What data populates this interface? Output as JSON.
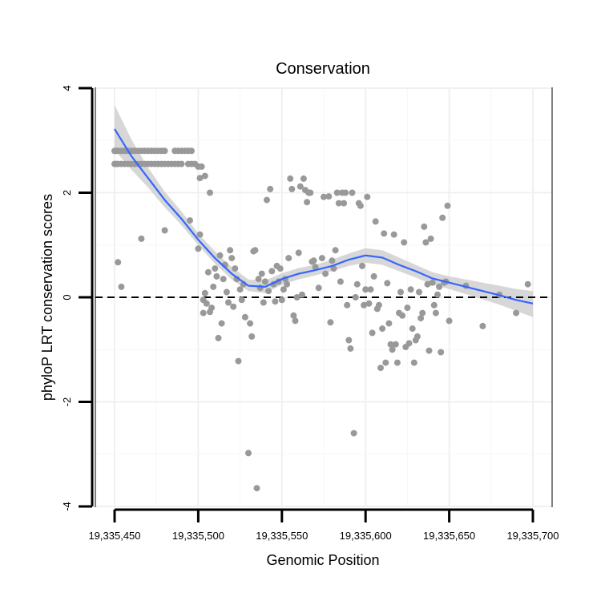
{
  "chart_data": {
    "type": "scatter",
    "title": "Conservation",
    "xlabel": "Genomic Position",
    "ylabel": "phyloP LRT conservation scores",
    "xlim": [
      19335445,
      19335705
    ],
    "ylim": [
      -4,
      4
    ],
    "x_ticks": [
      19335450,
      19335500,
      19335550,
      19335600,
      19335650,
      19335700
    ],
    "x_tick_labels": [
      "19,335,450",
      "19,335,500",
      "19,335,550",
      "19,335,600",
      "19,335,650",
      "19,335,700"
    ],
    "y_ticks": [
      -4,
      -2,
      0,
      2,
      4
    ],
    "y_tick_labels": [
      "-4",
      "-2",
      "0",
      "2",
      "4"
    ],
    "reference_line": {
      "y": 0,
      "style": "dashed"
    },
    "grid": true,
    "colors": {
      "points": "#999999",
      "smooth_line": "#3366ff",
      "confidence_band": "#d0d0d0",
      "reference": "#000000",
      "panel_border": "#808080"
    },
    "points": [
      [
        19335450,
        2.8
      ],
      [
        19335451,
        2.8
      ],
      [
        19335452,
        2.8
      ],
      [
        19335454,
        2.8
      ],
      [
        19335456,
        2.8
      ],
      [
        19335458,
        2.8
      ],
      [
        19335460,
        2.8
      ],
      [
        19335462,
        2.8
      ],
      [
        19335464,
        2.8
      ],
      [
        19335466,
        2.8
      ],
      [
        19335468,
        2.8
      ],
      [
        19335470,
        2.8
      ],
      [
        19335472,
        2.8
      ],
      [
        19335474,
        2.8
      ],
      [
        19335476,
        2.8
      ],
      [
        19335478,
        2.8
      ],
      [
        19335480,
        2.8
      ],
      [
        19335486,
        2.8
      ],
      [
        19335488,
        2.8
      ],
      [
        19335490,
        2.8
      ],
      [
        19335492,
        2.8
      ],
      [
        19335494,
        2.8
      ],
      [
        19335496,
        2.8
      ],
      [
        19335450,
        2.55
      ],
      [
        19335451,
        2.55
      ],
      [
        19335452,
        2.55
      ],
      [
        19335454,
        2.55
      ],
      [
        19335456,
        2.55
      ],
      [
        19335458,
        2.55
      ],
      [
        19335460,
        2.55
      ],
      [
        19335462,
        2.55
      ],
      [
        19335464,
        2.55
      ],
      [
        19335466,
        2.55
      ],
      [
        19335468,
        2.55
      ],
      [
        19335470,
        2.55
      ],
      [
        19335472,
        2.55
      ],
      [
        19335474,
        2.55
      ],
      [
        19335476,
        2.55
      ],
      [
        19335478,
        2.55
      ],
      [
        19335480,
        2.55
      ],
      [
        19335482,
        2.55
      ],
      [
        19335484,
        2.55
      ],
      [
        19335486,
        2.55
      ],
      [
        19335488,
        2.55
      ],
      [
        19335490,
        2.55
      ],
      [
        19335494,
        2.55
      ],
      [
        19335496,
        2.55
      ],
      [
        19335498,
        2.55
      ],
      [
        19335500,
        2.5
      ],
      [
        19335502,
        2.5
      ],
      [
        19335452,
        0.67
      ],
      [
        19335454,
        0.2
      ],
      [
        19335466,
        1.12
      ],
      [
        19335480,
        1.28
      ],
      [
        19335495,
        1.47
      ],
      [
        19335501,
        1.2
      ],
      [
        19335500,
        0.93
      ],
      [
        19335501,
        2.28
      ],
      [
        19335504,
        2.32
      ],
      [
        19335507,
        2.0
      ],
      [
        19335503,
        -0.05
      ],
      [
        19335503,
        -0.3
      ],
      [
        19335504,
        0.08
      ],
      [
        19335505,
        -0.12
      ],
      [
        19335506,
        0.48
      ],
      [
        19335507,
        -0.28
      ],
      [
        19335508,
        -0.2
      ],
      [
        19335509,
        0.2
      ],
      [
        19335510,
        0.55
      ],
      [
        19335511,
        0.4
      ],
      [
        19335512,
        -0.78
      ],
      [
        19335513,
        0.8
      ],
      [
        19335514,
        -0.5
      ],
      [
        19335515,
        0.35
      ],
      [
        19335516,
        0.62
      ],
      [
        19335517,
        0.1
      ],
      [
        19335518,
        -0.1
      ],
      [
        19335519,
        0.9
      ],
      [
        19335520,
        0.75
      ],
      [
        19335521,
        -0.18
      ],
      [
        19335522,
        0.55
      ],
      [
        19335523,
        0.35
      ],
      [
        19335524,
        -1.22
      ],
      [
        19335525,
        0.15
      ],
      [
        19335526,
        -0.05
      ],
      [
        19335527,
        0.25
      ],
      [
        19335528,
        -0.38
      ],
      [
        19335530,
        -2.98
      ],
      [
        19335531,
        -0.5
      ],
      [
        19335532,
        -0.75
      ],
      [
        19335533,
        0.88
      ],
      [
        19335534,
        0.9
      ],
      [
        19335535,
        -3.65
      ],
      [
        19335536,
        0.35
      ],
      [
        19335537,
        0.18
      ],
      [
        19335538,
        0.45
      ],
      [
        19335539,
        -0.1
      ],
      [
        19335540,
        0.3
      ],
      [
        19335541,
        1.86
      ],
      [
        19335542,
        0.12
      ],
      [
        19335543,
        2.07
      ],
      [
        19335544,
        0.5
      ],
      [
        19335545,
        0.25
      ],
      [
        19335546,
        -0.08
      ],
      [
        19335547,
        0.6
      ],
      [
        19335548,
        0.3
      ],
      [
        19335549,
        0.55
      ],
      [
        19335550,
        -0.05
      ],
      [
        19335551,
        0.15
      ],
      [
        19335552,
        0.35
      ],
      [
        19335553,
        0.25
      ],
      [
        19335554,
        0.75
      ],
      [
        19335555,
        2.27
      ],
      [
        19335556,
        2.07
      ],
      [
        19335557,
        -0.35
      ],
      [
        19335558,
        -0.45
      ],
      [
        19335559,
        0.0
      ],
      [
        19335560,
        0.85
      ],
      [
        19335561,
        2.12
      ],
      [
        19335562,
        0.05
      ],
      [
        19335563,
        2.27
      ],
      [
        19335564,
        2.05
      ],
      [
        19335565,
        1.82
      ],
      [
        19335566,
        2.0
      ],
      [
        19335567,
        2.0
      ],
      [
        19335568,
        0.68
      ],
      [
        19335569,
        0.7
      ],
      [
        19335570,
        0.58
      ],
      [
        19335572,
        0.18
      ],
      [
        19335574,
        0.75
      ],
      [
        19335575,
        1.92
      ],
      [
        19335576,
        0.45
      ],
      [
        19335578,
        1.93
      ],
      [
        19335579,
        -0.48
      ],
      [
        19335580,
        0.7
      ],
      [
        19335581,
        0.55
      ],
      [
        19335582,
        0.9
      ],
      [
        19335583,
        2.0
      ],
      [
        19335584,
        1.8
      ],
      [
        19335585,
        0.3
      ],
      [
        19335586,
        2.0
      ],
      [
        19335587,
        1.8
      ],
      [
        19335588,
        2.0
      ],
      [
        19335589,
        -0.15
      ],
      [
        19335590,
        -0.82
      ],
      [
        19335591,
        -0.98
      ],
      [
        19335592,
        2.0
      ],
      [
        19335593,
        -2.6
      ],
      [
        19335594,
        0.0
      ],
      [
        19335595,
        0.25
      ],
      [
        19335596,
        1.8
      ],
      [
        19335597,
        1.75
      ],
      [
        19335598,
        0.6
      ],
      [
        19335599,
        -0.15
      ],
      [
        19335600,
        0.15
      ],
      [
        19335601,
        1.92
      ],
      [
        19335602,
        -0.12
      ],
      [
        19335603,
        0.15
      ],
      [
        19335604,
        -0.68
      ],
      [
        19335605,
        0.4
      ],
      [
        19335606,
        1.45
      ],
      [
        19335607,
        -0.22
      ],
      [
        19335608,
        -0.15
      ],
      [
        19335609,
        -1.35
      ],
      [
        19335610,
        -0.6
      ],
      [
        19335611,
        1.22
      ],
      [
        19335612,
        -1.25
      ],
      [
        19335613,
        0.27
      ],
      [
        19335614,
        -0.5
      ],
      [
        19335615,
        -0.9
      ],
      [
        19335616,
        -1.0
      ],
      [
        19335617,
        1.2
      ],
      [
        19335618,
        -0.9
      ],
      [
        19335619,
        -1.25
      ],
      [
        19335620,
        -0.3
      ],
      [
        19335621,
        0.1
      ],
      [
        19335622,
        -0.35
      ],
      [
        19335623,
        1.05
      ],
      [
        19335624,
        -0.95
      ],
      [
        19335625,
        -0.2
      ],
      [
        19335626,
        -0.88
      ],
      [
        19335627,
        0.15
      ],
      [
        19335628,
        -0.6
      ],
      [
        19335629,
        -1.25
      ],
      [
        19335630,
        -0.82
      ],
      [
        19335631,
        -0.75
      ],
      [
        19335632,
        0.1
      ],
      [
        19335633,
        -0.4
      ],
      [
        19335634,
        -0.3
      ],
      [
        19335635,
        1.35
      ],
      [
        19335636,
        1.05
      ],
      [
        19335637,
        0.25
      ],
      [
        19335638,
        -1.02
      ],
      [
        19335639,
        1.12
      ],
      [
        19335640,
        0.28
      ],
      [
        19335641,
        -0.15
      ],
      [
        19335642,
        -0.3
      ],
      [
        19335643,
        0.05
      ],
      [
        19335644,
        0.2
      ],
      [
        19335645,
        -1.05
      ],
      [
        19335646,
        1.52
      ],
      [
        19335647,
        0.28
      ],
      [
        19335648,
        0.3
      ],
      [
        19335649,
        1.75
      ],
      [
        19335650,
        -0.45
      ],
      [
        19335660,
        0.22
      ],
      [
        19335670,
        -0.55
      ],
      [
        19335680,
        0.05
      ],
      [
        19335690,
        -0.3
      ],
      [
        19335697,
        0.25
      ]
    ],
    "smooth": {
      "x": [
        19335450,
        19335460,
        19335470,
        19335480,
        19335490,
        19335500,
        19335510,
        19335520,
        19335530,
        19335540,
        19335550,
        19335560,
        19335570,
        19335580,
        19335590,
        19335600,
        19335610,
        19335620,
        19335630,
        19335640,
        19335650,
        19335660,
        19335670,
        19335680,
        19335690,
        19335700
      ],
      "y": [
        3.22,
        2.7,
        2.28,
        1.86,
        1.5,
        1.1,
        0.75,
        0.45,
        0.22,
        0.2,
        0.35,
        0.45,
        0.52,
        0.6,
        0.72,
        0.8,
        0.76,
        0.62,
        0.5,
        0.36,
        0.28,
        0.2,
        0.12,
        0.04,
        -0.05,
        -0.12
      ],
      "lower": [
        2.82,
        2.44,
        2.1,
        1.72,
        1.38,
        1.0,
        0.64,
        0.34,
        0.12,
        0.08,
        0.24,
        0.34,
        0.42,
        0.5,
        0.6,
        0.66,
        0.62,
        0.5,
        0.38,
        0.24,
        0.16,
        0.06,
        -0.04,
        -0.14,
        -0.26,
        -0.38
      ],
      "upper": [
        3.68,
        3.02,
        2.48,
        2.02,
        1.64,
        1.22,
        0.88,
        0.58,
        0.34,
        0.32,
        0.46,
        0.56,
        0.62,
        0.72,
        0.84,
        0.94,
        0.9,
        0.76,
        0.62,
        0.48,
        0.4,
        0.34,
        0.28,
        0.22,
        0.16,
        0.12
      ]
    }
  }
}
